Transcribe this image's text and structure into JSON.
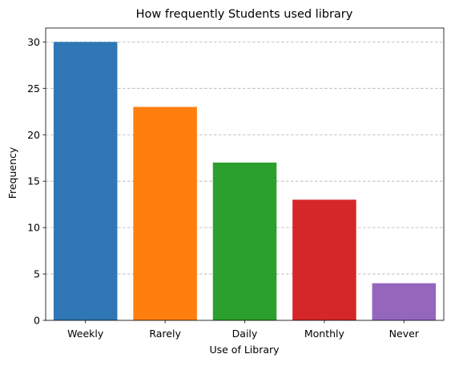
{
  "chart_data": {
    "type": "bar",
    "title": "How frequently Students used library",
    "xlabel": "Use of Library",
    "ylabel": "Frequency",
    "categories": [
      "Weekly",
      "Rarely",
      "Daily",
      "Monthly",
      "Never"
    ],
    "values": [
      30,
      23,
      17,
      13,
      4
    ],
    "colors": [
      "#2f77b4",
      "#ff7f0e",
      "#2ca02c",
      "#d62728",
      "#9467bd"
    ],
    "ylim": [
      0,
      31.5
    ],
    "yticks": [
      0,
      5,
      10,
      15,
      20,
      25,
      30
    ],
    "grid": {
      "axis": "y",
      "style": "dashed",
      "color": "#b0b0b0"
    },
    "legend": "none"
  }
}
